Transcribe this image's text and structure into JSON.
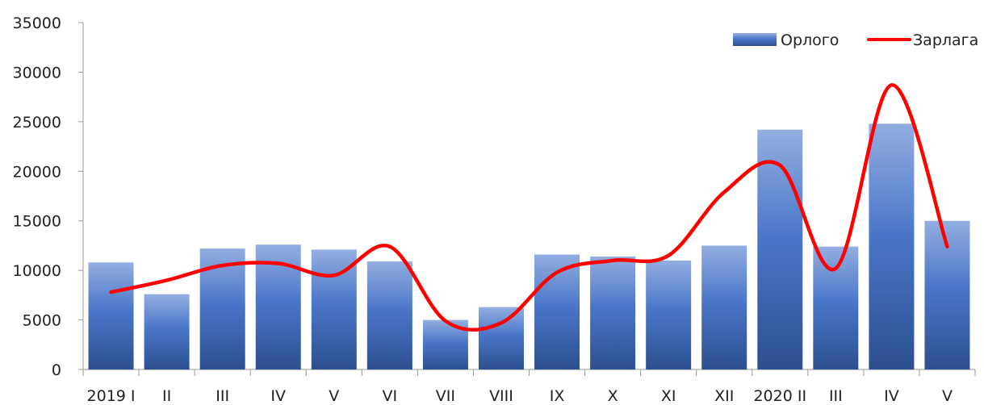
{
  "chart_data": {
    "type": "bar",
    "categories": [
      "2019 I",
      "II",
      "III",
      "IV",
      "V",
      "VI",
      "VII",
      "VIII",
      "IX",
      "X",
      "XI",
      "XII",
      "2020 II",
      "III",
      "IV",
      "V"
    ],
    "series": [
      {
        "name": "Орлого",
        "type": "bar",
        "values": [
          10800,
          7600,
          12200,
          12600,
          12100,
          10900,
          5000,
          6300,
          11600,
          11400,
          11000,
          12500,
          24200,
          12400,
          24800,
          15000
        ]
      },
      {
        "name": "Зарлага",
        "type": "line",
        "values": [
          7800,
          9000,
          10500,
          10700,
          9500,
          12400,
          4900,
          4700,
          9800,
          11000,
          11500,
          17900,
          20600,
          10200,
          28700,
          12400
        ]
      }
    ],
    "ylim": [
      0,
      35000
    ],
    "yticks": [
      0,
      5000,
      10000,
      15000,
      20000,
      25000,
      30000,
      35000
    ],
    "legend_position": "top-right",
    "grid": false,
    "colors": {
      "bar_top": "#93aee0",
      "bar_mid": "#4a76c9",
      "bar_bottom": "#2c4f8f",
      "line": "#ff0000",
      "axis": "#9a9a9a"
    }
  }
}
